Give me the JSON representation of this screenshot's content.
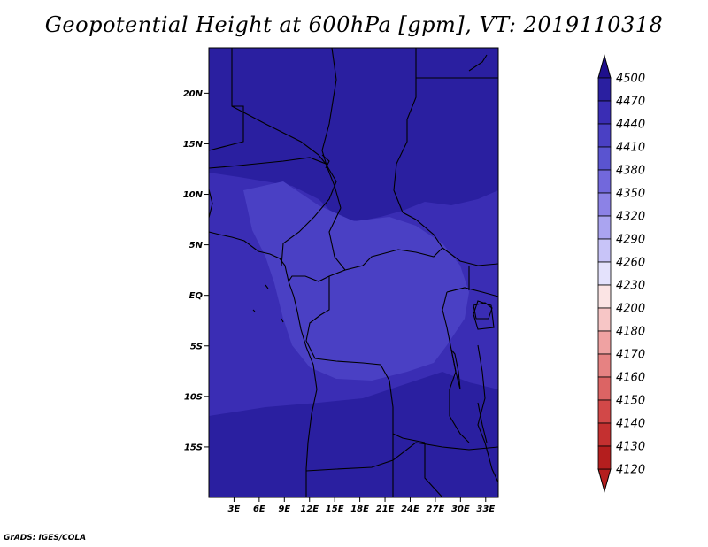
{
  "title": "Geopotential Height at 600hPa [gpm], VT: 2019110318",
  "footer": "GrADS: IGES/COLA",
  "map": {
    "lon_range": [
      0,
      34.5
    ],
    "lat_range": [
      -20,
      24.5
    ],
    "lat_ticks": [
      {
        "value": 20,
        "label": "20N"
      },
      {
        "value": 15,
        "label": "15N"
      },
      {
        "value": 10,
        "label": "10N"
      },
      {
        "value": 5,
        "label": "5N"
      },
      {
        "value": 0,
        "label": "EQ"
      },
      {
        "value": -5,
        "label": "5S"
      },
      {
        "value": -10,
        "label": "10S"
      },
      {
        "value": -15,
        "label": "15S"
      }
    ],
    "lon_ticks": [
      {
        "value": 3,
        "label": "3E"
      },
      {
        "value": 6,
        "label": "6E"
      },
      {
        "value": 9,
        "label": "9E"
      },
      {
        "value": 12,
        "label": "12E"
      },
      {
        "value": 15,
        "label": "15E"
      },
      {
        "value": 18,
        "label": "18E"
      },
      {
        "value": 21,
        "label": "21E"
      },
      {
        "value": 24,
        "label": "24E"
      },
      {
        "value": 27,
        "label": "27E"
      },
      {
        "value": 30,
        "label": "30E"
      },
      {
        "value": 33,
        "label": "33E"
      }
    ]
  },
  "colorbar": {
    "levels": [
      "4500",
      "4470",
      "4440",
      "4410",
      "4380",
      "4350",
      "4320",
      "4290",
      "4260",
      "4230",
      "4200",
      "4180",
      "4170",
      "4160",
      "4150",
      "4140",
      "4130",
      "4120"
    ],
    "colors": [
      "#1e0f8c",
      "#2a1fa0",
      "#3a2db4",
      "#4a40c4",
      "#5a54d0",
      "#7268dc",
      "#8c82e6",
      "#aaa4f0",
      "#c8c4f8",
      "#e4e2fc",
      "#fbe4e4",
      "#f7c6c6",
      "#efa2a2",
      "#e68282",
      "#dc6464",
      "#d24848",
      "#c43030",
      "#b41e1e"
    ],
    "top_arrow_color": "#1e0f8c",
    "bottom_arrow_color": "#b41e1e"
  },
  "field_colors": {
    "base": "#3a2db4",
    "higher": "#2a1fa0",
    "lower": "#4a40c4"
  }
}
